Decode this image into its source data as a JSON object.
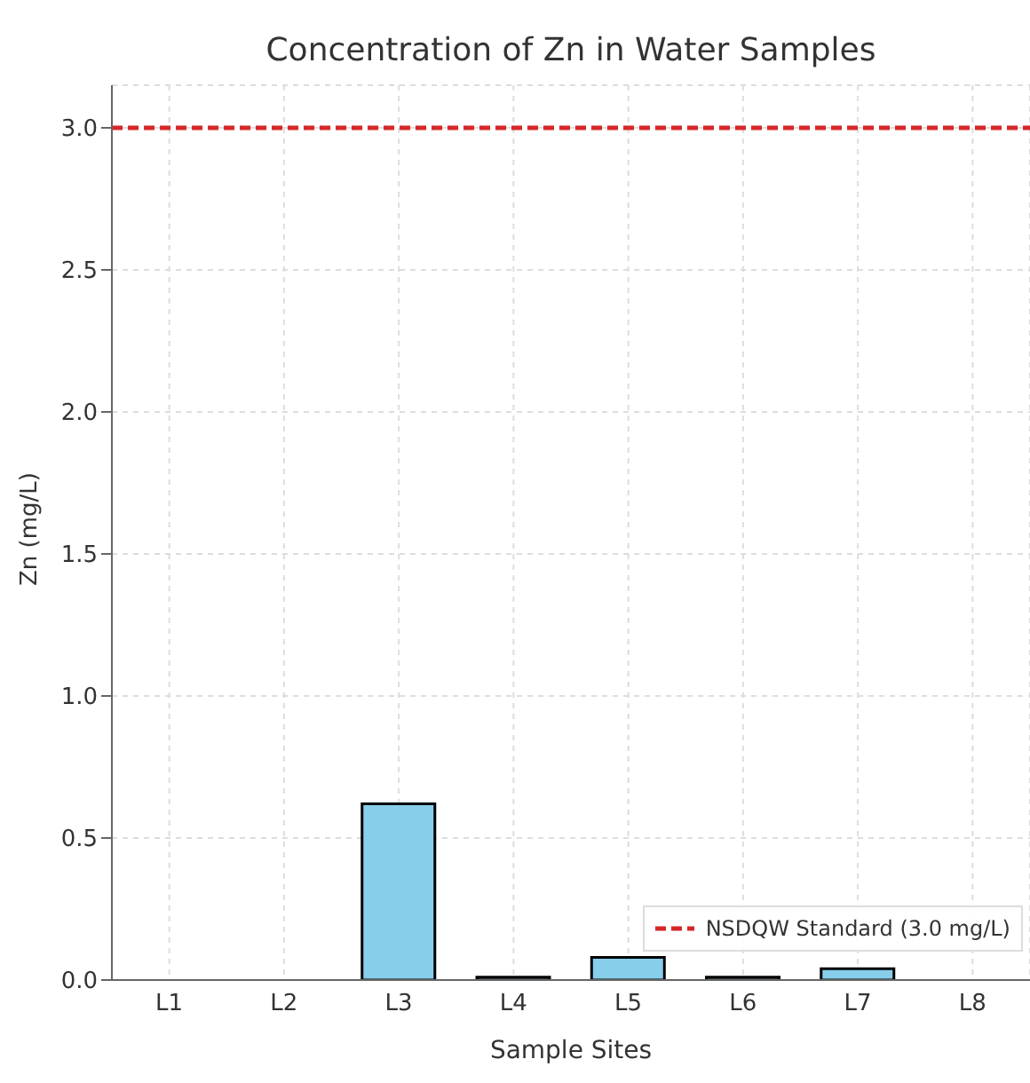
{
  "chart_data": {
    "type": "bar",
    "title": "Concentration of Zn in Water Samples",
    "xlabel": "Sample Sites",
    "ylabel": "Zn (mg/L)",
    "categories": [
      "L1",
      "L2",
      "L3",
      "L4",
      "L5",
      "L6",
      "L7",
      "L8"
    ],
    "values": [
      0,
      0,
      0.62,
      0.01,
      0.08,
      0.01,
      0.04,
      0
    ],
    "color": "#87ceeb",
    "ylim": [
      0,
      3.15
    ],
    "yticks": [
      {
        "value": 0,
        "label": "0.0"
      },
      0.5,
      {
        "value": 1,
        "label": "1.0"
      },
      1.5,
      {
        "value": 2,
        "label": "2.0"
      },
      2.5,
      {
        "value": 3,
        "label": "3.0"
      }
    ],
    "ref_lines": [
      {
        "axis": "y",
        "value": 3,
        "label": "NSDQW Standard (3.0 mg/L)",
        "color": "#d62728",
        "line_style": "dashed"
      }
    ],
    "grid": true,
    "legend": "bottom right"
  }
}
